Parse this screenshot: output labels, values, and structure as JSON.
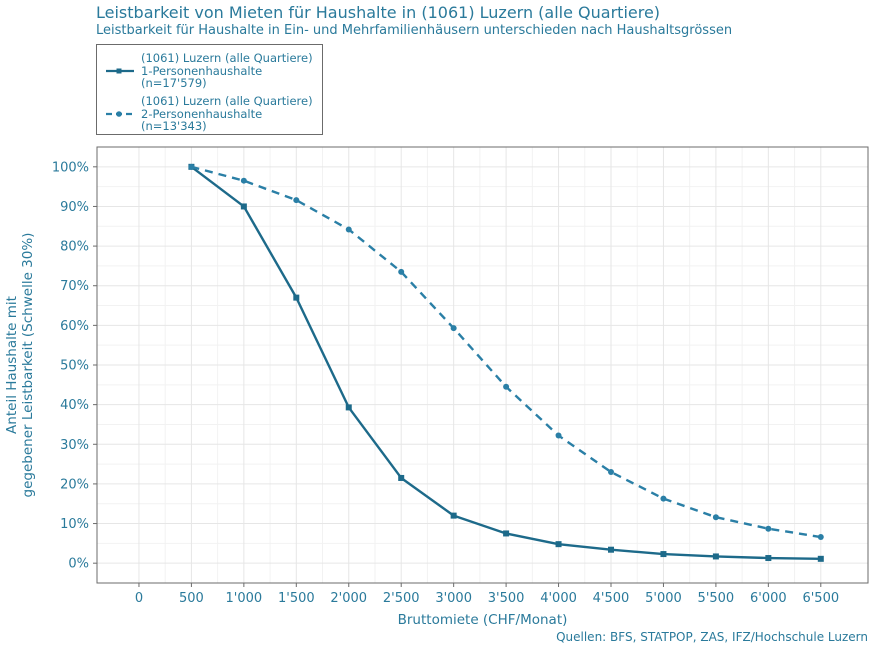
{
  "chart_data": {
    "type": "line",
    "title": "Leistbarkeit von Mieten für Haushalte in (1061) Luzern (alle Quartiere)",
    "subtitle": "Leistbarkeit für Haushalte in Ein- und Mehrfamilienhäusern unterschieden nach Haushaltsgrössen",
    "xlabel": "Bruttomiete (CHF/Monat)",
    "ylabel_lines": [
      "Anteil Haushalte mit",
      "gegebener Leistbarkeit (Schwelle 30%)"
    ],
    "source": "Quellen: BFS, STATPOP, ZAS, IFZ/Hochschule Luzern",
    "x_ticks": [
      0,
      500,
      1000,
      1500,
      2000,
      2500,
      3000,
      3500,
      4000,
      4500,
      5000,
      5500,
      6000,
      6500
    ],
    "x_tick_labels": [
      "0",
      "500",
      "1'000",
      "1'500",
      "2'000",
      "2'500",
      "3'000",
      "3'500",
      "4'000",
      "4'500",
      "5'000",
      "5'500",
      "6'000",
      "6'500"
    ],
    "y_ticks": [
      0,
      10,
      20,
      30,
      40,
      50,
      60,
      70,
      80,
      90,
      100
    ],
    "y_tick_labels": [
      "0%",
      "10%",
      "20%",
      "30%",
      "40%",
      "50%",
      "60%",
      "70%",
      "80%",
      "90%",
      "100%"
    ],
    "xlim": [
      -400,
      6950
    ],
    "ylim": [
      -5,
      105
    ],
    "grid": true,
    "legend_position": "top-left",
    "x": [
      500,
      1000,
      1500,
      2000,
      2500,
      3000,
      3500,
      4000,
      4500,
      5000,
      5500,
      6000,
      6500
    ],
    "series": [
      {
        "name_lines": [
          "(1061) Luzern (alle Quartiere)",
          "1-Personenhaushalte",
          "(n=17'579)"
        ],
        "values": [
          100,
          90,
          67,
          39.3,
          21.5,
          12,
          7.5,
          4.8,
          3.4,
          2.3,
          1.7,
          1.3,
          1.1
        ],
        "color": "#1d6a8a",
        "dash": "solid",
        "marker": "square"
      },
      {
        "name_lines": [
          "(1061) Luzern (alle Quartiere)",
          "2-Personenhaushalte",
          "(n=13'343)"
        ],
        "values": [
          100,
          96.5,
          91.6,
          84.2,
          73.5,
          59.3,
          44.5,
          32.2,
          23,
          16.3,
          11.6,
          8.7,
          6.6
        ],
        "color": "#2a7fa6",
        "dash": "dashed",
        "marker": "circle"
      }
    ]
  }
}
